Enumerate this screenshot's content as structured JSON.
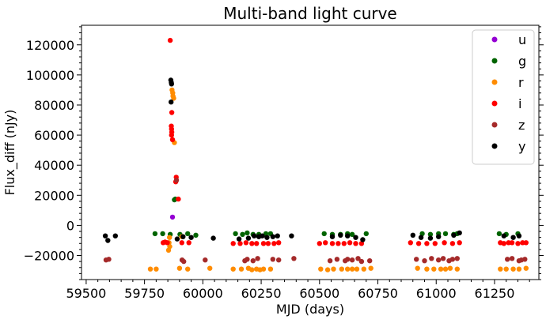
{
  "chart_data": {
    "type": "scatter",
    "title": "Multi-band light curve",
    "xlabel": "MJD (days)",
    "ylabel": "Flux_diff (nJy)",
    "xlim": [
      59480,
      61440
    ],
    "ylim": [
      -36000,
      133000
    ],
    "x_ticks": [
      59500,
      59750,
      60000,
      60250,
      60500,
      60750,
      61000,
      61250
    ],
    "x_tick_labels": [
      "59500",
      "59750",
      "60000",
      "60250",
      "60500",
      "60750",
      "61000",
      "61250"
    ],
    "y_ticks": [
      -20000,
      0,
      20000,
      40000,
      60000,
      80000,
      100000,
      120000
    ],
    "y_tick_labels": [
      "−20000",
      "0",
      "20000",
      "40000",
      "60000",
      "80000",
      "100000",
      "120000"
    ],
    "grid": false,
    "legend_position": "top-right",
    "series": [
      {
        "name": "u",
        "color": "#9400d3",
        "points": [
          [
            59870,
            5500
          ]
        ]
      },
      {
        "name": "g",
        "color": "#006400",
        "points": [
          [
            59795,
            -5500
          ],
          [
            59828,
            -5500
          ],
          [
            59860,
            -6000
          ],
          [
            59878,
            17000
          ],
          [
            59882,
            17500
          ],
          [
            59902,
            -6000
          ],
          [
            59935,
            -5500
          ],
          [
            59970,
            -6500
          ],
          [
            60140,
            -5500
          ],
          [
            60170,
            -6000
          ],
          [
            60190,
            -5000
          ],
          [
            60215,
            -6000
          ],
          [
            60240,
            -6000
          ],
          [
            60270,
            -5500
          ],
          [
            60290,
            -5500
          ],
          [
            60520,
            -5500
          ],
          [
            60555,
            -6000
          ],
          [
            60590,
            -6000
          ],
          [
            60620,
            -5500
          ],
          [
            60640,
            -6000
          ],
          [
            60700,
            -5500
          ],
          [
            60940,
            -5500
          ],
          [
            60975,
            -6000
          ],
          [
            61010,
            -5500
          ],
          [
            61040,
            -5500
          ],
          [
            61075,
            -6000
          ],
          [
            61090,
            -5500
          ],
          [
            61270,
            -5500
          ],
          [
            61300,
            -6000
          ],
          [
            61350,
            -5500
          ]
        ]
      },
      {
        "name": "r",
        "color": "#ff8c00",
        "points": [
          [
            59857,
            -8000
          ],
          [
            59855,
            -11500
          ],
          [
            59858,
            -14000
          ],
          [
            59853,
            -16500
          ],
          [
            59868,
            90000
          ],
          [
            59871,
            88000
          ],
          [
            59872,
            86000
          ],
          [
            59875,
            84500
          ],
          [
            59878,
            55000
          ],
          [
            59910,
            -7500
          ],
          [
            59775,
            -29000
          ],
          [
            59800,
            -29000
          ],
          [
            59900,
            -28500
          ],
          [
            59935,
            -29000
          ],
          [
            60030,
            -28500
          ],
          [
            60130,
            -29000
          ],
          [
            60165,
            -29000
          ],
          [
            60195,
            -28500
          ],
          [
            60210,
            -29500
          ],
          [
            60230,
            -29000
          ],
          [
            60245,
            -29500
          ],
          [
            60260,
            -29000
          ],
          [
            60290,
            -29000
          ],
          [
            60505,
            -29000
          ],
          [
            60535,
            -29500
          ],
          [
            60560,
            -29000
          ],
          [
            60595,
            -29000
          ],
          [
            60620,
            -29000
          ],
          [
            60640,
            -29000
          ],
          [
            60660,
            -29000
          ],
          [
            60690,
            -29000
          ],
          [
            60720,
            -28500
          ],
          [
            60920,
            -28500
          ],
          [
            60960,
            -29000
          ],
          [
            60990,
            -29000
          ],
          [
            61020,
            -29000
          ],
          [
            61040,
            -29000
          ],
          [
            61060,
            -28500
          ],
          [
            61090,
            -29000
          ],
          [
            61275,
            -29000
          ],
          [
            61300,
            -29000
          ],
          [
            61330,
            -29000
          ],
          [
            61355,
            -29000
          ],
          [
            61385,
            -28500
          ]
        ]
      },
      {
        "name": "i",
        "color": "#ff0000",
        "points": [
          [
            59860,
            123000
          ],
          [
            59867,
            75000
          ],
          [
            59865,
            66000
          ],
          [
            59866,
            64000
          ],
          [
            59867,
            62000
          ],
          [
            59866,
            60000
          ],
          [
            59870,
            57000
          ],
          [
            59886,
            32000
          ],
          [
            59884,
            29000
          ],
          [
            59895,
            17500
          ],
          [
            59830,
            -11500
          ],
          [
            59838,
            -11000
          ],
          [
            59848,
            -11500
          ],
          [
            59910,
            -11500
          ],
          [
            59940,
            -11500
          ],
          [
            60130,
            -12000
          ],
          [
            60160,
            -12000
          ],
          [
            60185,
            -11500
          ],
          [
            60210,
            -12000
          ],
          [
            60230,
            -12000
          ],
          [
            60260,
            -12000
          ],
          [
            60280,
            -12000
          ],
          [
            60305,
            -12000
          ],
          [
            60325,
            -11500
          ],
          [
            60500,
            -12000
          ],
          [
            60525,
            -11500
          ],
          [
            60555,
            -12000
          ],
          [
            60580,
            -12000
          ],
          [
            60605,
            -12000
          ],
          [
            60630,
            -11500
          ],
          [
            60655,
            -12000
          ],
          [
            60680,
            -12000
          ],
          [
            60890,
            -11500
          ],
          [
            60925,
            -12000
          ],
          [
            60960,
            -12000
          ],
          [
            60995,
            -12000
          ],
          [
            61035,
            -11500
          ],
          [
            61070,
            -12000
          ],
          [
            61100,
            -11500
          ],
          [
            61275,
            -11500
          ],
          [
            61290,
            -12000
          ],
          [
            61310,
            -11500
          ],
          [
            61325,
            -11500
          ],
          [
            61350,
            -12000
          ],
          [
            61370,
            -11500
          ],
          [
            61385,
            -11500
          ]
        ]
      },
      {
        "name": "z",
        "color": "#a52a2a",
        "points": [
          [
            59585,
            -23000
          ],
          [
            59597,
            -22500
          ],
          [
            59887,
            30000
          ],
          [
            59911,
            -23000
          ],
          [
            59918,
            -24000
          ],
          [
            60010,
            -23000
          ],
          [
            60180,
            -23500
          ],
          [
            60190,
            -22500
          ],
          [
            60215,
            -23500
          ],
          [
            60235,
            -22000
          ],
          [
            60300,
            -22500
          ],
          [
            60325,
            -23000
          ],
          [
            60390,
            -22000
          ],
          [
            60545,
            -23500
          ],
          [
            60575,
            -22500
          ],
          [
            60610,
            -23500
          ],
          [
            60620,
            -22500
          ],
          [
            60640,
            -23000
          ],
          [
            60665,
            -22000
          ],
          [
            60680,
            -24000
          ],
          [
            60715,
            -23500
          ],
          [
            60915,
            -22500
          ],
          [
            60950,
            -23500
          ],
          [
            60980,
            -22000
          ],
          [
            61010,
            -23000
          ],
          [
            61030,
            -22000
          ],
          [
            61055,
            -23500
          ],
          [
            61070,
            -22500
          ],
          [
            61090,
            -22000
          ],
          [
            61305,
            -22500
          ],
          [
            61325,
            -22000
          ],
          [
            61355,
            -23500
          ],
          [
            61365,
            -23000
          ],
          [
            61380,
            -22500
          ]
        ]
      },
      {
        "name": "y",
        "color": "#000000",
        "points": [
          [
            59582,
            -7000
          ],
          [
            59593,
            -10000
          ],
          [
            59625,
            -7000
          ],
          [
            59863,
            96500
          ],
          [
            59865,
            95000
          ],
          [
            59866,
            94000
          ],
          [
            59864,
            82000
          ],
          [
            59890,
            -9000
          ],
          [
            59915,
            -7500
          ],
          [
            59950,
            -8000
          ],
          [
            60045,
            -8500
          ],
          [
            60155,
            -9000
          ],
          [
            60195,
            -8500
          ],
          [
            60220,
            -7000
          ],
          [
            60240,
            -7500
          ],
          [
            60255,
            -7000
          ],
          [
            60275,
            -8000
          ],
          [
            60300,
            -7500
          ],
          [
            60320,
            -7000
          ],
          [
            60380,
            -7000
          ],
          [
            60555,
            -7500
          ],
          [
            60590,
            -6500
          ],
          [
            60620,
            -7000
          ],
          [
            60655,
            -8000
          ],
          [
            60685,
            -9500
          ],
          [
            60900,
            -6500
          ],
          [
            60935,
            -8000
          ],
          [
            60975,
            -8500
          ],
          [
            61010,
            -7500
          ],
          [
            61075,
            -6500
          ],
          [
            61100,
            -5000
          ],
          [
            61290,
            -7000
          ],
          [
            61330,
            -8000
          ],
          [
            61355,
            -7000
          ]
        ]
      }
    ]
  }
}
